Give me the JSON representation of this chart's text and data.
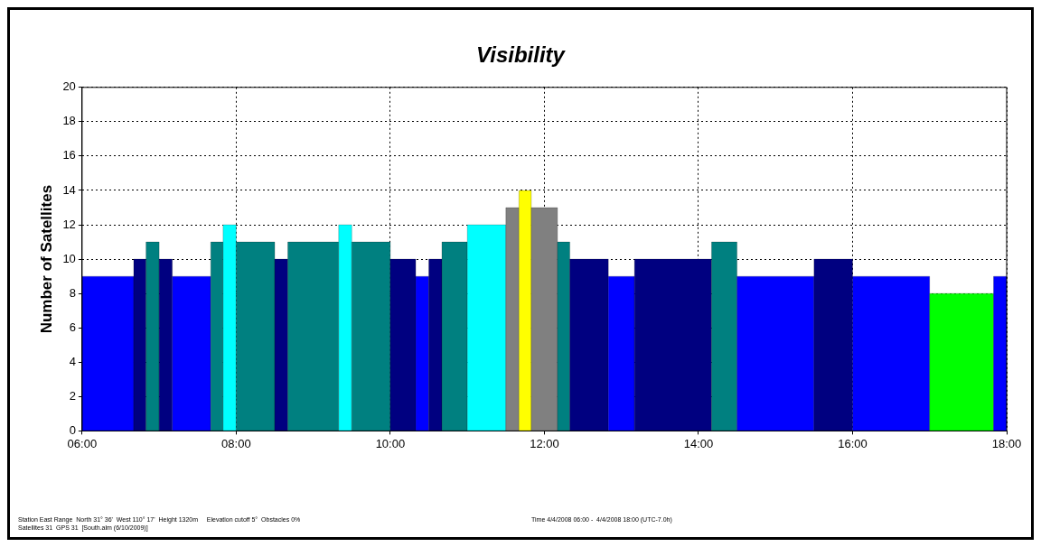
{
  "chart_data": {
    "type": "histogram",
    "title": "Visibility",
    "ylabel": "Number of Satellites",
    "bins": [
      6,
      6.67,
      6.83,
      7,
      7.17,
      7.67,
      7.83,
      8,
      8.5,
      8.67,
      9.33,
      9.5,
      10,
      10.33,
      10.5,
      10.67,
      11,
      11.5,
      11.67,
      11.83,
      12.17,
      12.33,
      12.83,
      13.17,
      14.17,
      14.5,
      15.5,
      16,
      17,
      17.83,
      18
    ],
    "values": [
      9,
      10,
      11,
      10,
      9,
      11,
      12,
      11,
      10,
      11,
      12,
      11,
      10,
      9,
      10,
      11,
      12,
      13,
      14,
      13,
      11,
      10,
      9,
      10,
      11,
      9,
      10,
      9,
      8,
      9
    ],
    "colors": [
      "#0000ff",
      "#000080",
      "#008080",
      "#000080",
      "#0000ff",
      "#008080",
      "#00ffff",
      "#008080",
      "#000080",
      "#008080",
      "#00ffff",
      "#008080",
      "#000080",
      "#0000ff",
      "#000080",
      "#008080",
      "#00ffff",
      "#808080",
      "#ffff00",
      "#808080",
      "#008080",
      "#000080",
      "#0000ff",
      "#000080",
      "#008080",
      "#0000ff",
      "#000080",
      "#0000ff",
      "#00ff00",
      "#0000ff"
    ],
    "xlim": [
      6,
      18
    ],
    "xticks": [
      {
        "value": 6,
        "label": "06:00"
      },
      {
        "value": 8,
        "label": "08:00"
      },
      {
        "value": 10,
        "label": "10:00"
      },
      {
        "value": 12,
        "label": "12:00"
      },
      {
        "value": 14,
        "label": "14:00"
      },
      {
        "value": 16,
        "label": "16:00"
      },
      {
        "value": 18,
        "label": "18:00"
      }
    ],
    "ylim": [
      0,
      20
    ],
    "yticks": [
      0,
      2,
      4,
      6,
      8,
      10,
      12,
      14,
      16,
      18,
      20
    ],
    "grid": true,
    "annotations": [
      "Station East Range  North 31° 36'  West 110° 17'  Height 1320m     Elevation cutoff 5°  Obstacles 0%",
      "Satellites 31  GPS 31  [South.alm (6/10/2009)]",
      "Time 4/4/2008 06:00 -  4/4/2008 18:00 (UTC-7.0h)"
    ]
  }
}
